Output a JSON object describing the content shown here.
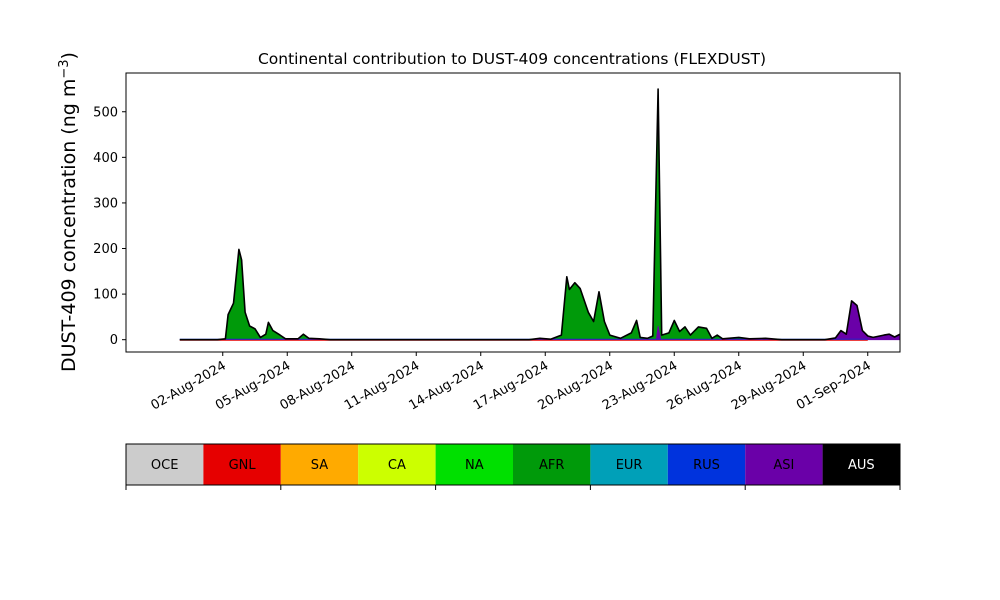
{
  "chart_data": {
    "type": "area",
    "title": "Continental contribution to DUST-409 concentrations (FLEXDUST)",
    "xlabel": "",
    "ylabel_main": "DUST-409 concentration (ng m",
    "ylabel_sup": "−3",
    "ylabel_close": ")",
    "xlim": [
      "2024-07-28T12:00",
      "2024-09-02T12:00"
    ],
    "ylim": [
      -27,
      585
    ],
    "yticks": [
      0,
      100,
      200,
      300,
      400,
      500
    ],
    "xticks": [
      {
        "date": "2024-08-02",
        "label": "02-Aug-2024"
      },
      {
        "date": "2024-08-05",
        "label": "05-Aug-2024"
      },
      {
        "date": "2024-08-08",
        "label": "08-Aug-2024"
      },
      {
        "date": "2024-08-11",
        "label": "11-Aug-2024"
      },
      {
        "date": "2024-08-14",
        "label": "14-Aug-2024"
      },
      {
        "date": "2024-08-17",
        "label": "17-Aug-2024"
      },
      {
        "date": "2024-08-20",
        "label": "20-Aug-2024"
      },
      {
        "date": "2024-08-23",
        "label": "23-Aug-2024"
      },
      {
        "date": "2024-08-26",
        "label": "26-Aug-2024"
      },
      {
        "date": "2024-08-29",
        "label": "29-Aug-2024"
      },
      {
        "date": "2024-09-01",
        "label": "01-Sep-2024"
      }
    ],
    "grid": false,
    "series": [
      {
        "name": "AFR",
        "color": "#009a0a",
        "points": [
          [
            "2024-07-31T00:00",
            0
          ],
          [
            "2024-08-01T18:00",
            0
          ],
          [
            "2024-08-02T03:00",
            2
          ],
          [
            "2024-08-02T06:00",
            55
          ],
          [
            "2024-08-02T12:00",
            80
          ],
          [
            "2024-08-02T18:00",
            198
          ],
          [
            "2024-08-02T21:00",
            175
          ],
          [
            "2024-08-03T01:00",
            60
          ],
          [
            "2024-08-03T06:00",
            30
          ],
          [
            "2024-08-03T12:00",
            24
          ],
          [
            "2024-08-03T18:00",
            5
          ],
          [
            "2024-08-04T00:00",
            12
          ],
          [
            "2024-08-04T03:00",
            38
          ],
          [
            "2024-08-04T08:00",
            20
          ],
          [
            "2024-08-04T16:00",
            10
          ],
          [
            "2024-08-04T22:00",
            2
          ],
          [
            "2024-08-05T12:00",
            2
          ],
          [
            "2024-08-05T18:00",
            12
          ],
          [
            "2024-08-06T00:00",
            3
          ],
          [
            "2024-08-06T12:00",
            2
          ],
          [
            "2024-08-07T00:00",
            0
          ],
          [
            "2024-08-16T06:00",
            0
          ],
          [
            "2024-08-16T18:00",
            3
          ],
          [
            "2024-08-17T06:00",
            1
          ],
          [
            "2024-08-17T18:00",
            10
          ],
          [
            "2024-08-18T00:00",
            138
          ],
          [
            "2024-08-18T03:00",
            110
          ],
          [
            "2024-08-18T09:00",
            125
          ],
          [
            "2024-08-18T15:00",
            112
          ],
          [
            "2024-08-19T00:00",
            60
          ],
          [
            "2024-08-19T06:00",
            40
          ],
          [
            "2024-08-19T12:00",
            105
          ],
          [
            "2024-08-19T18:00",
            40
          ],
          [
            "2024-08-20T00:00",
            10
          ],
          [
            "2024-08-20T12:00",
            3
          ],
          [
            "2024-08-21T00:00",
            15
          ],
          [
            "2024-08-21T06:00",
            42
          ],
          [
            "2024-08-21T10:00",
            5
          ],
          [
            "2024-08-21T18:00",
            3
          ],
          [
            "2024-08-22T00:00",
            8
          ],
          [
            "2024-08-22T06:00",
            520
          ],
          [
            "2024-08-22T10:00",
            10
          ],
          [
            "2024-08-22T18:00",
            15
          ],
          [
            "2024-08-23T00:00",
            42
          ],
          [
            "2024-08-23T06:00",
            18
          ],
          [
            "2024-08-23T12:00",
            28
          ],
          [
            "2024-08-23T18:00",
            10
          ],
          [
            "2024-08-24T03:00",
            28
          ],
          [
            "2024-08-24T12:00",
            25
          ],
          [
            "2024-08-24T18:00",
            3
          ],
          [
            "2024-08-25T00:00",
            10
          ],
          [
            "2024-08-25T06:00",
            2
          ],
          [
            "2024-08-26T00:00",
            5
          ],
          [
            "2024-08-26T12:00",
            2
          ],
          [
            "2024-08-27T06:00",
            3
          ],
          [
            "2024-08-28T00:00",
            0
          ],
          [
            "2024-09-01T00:00",
            0
          ]
        ]
      },
      {
        "name": "ASI",
        "color": "#6a00a8",
        "points": [
          [
            "2024-07-31T00:00",
            0
          ],
          [
            "2024-08-22T04:00",
            0
          ],
          [
            "2024-08-22T06:00",
            30
          ],
          [
            "2024-08-22T09:00",
            0
          ],
          [
            "2024-08-30T00:00",
            0
          ],
          [
            "2024-08-30T12:00",
            4
          ],
          [
            "2024-08-30T18:00",
            20
          ],
          [
            "2024-08-31T00:00",
            12
          ],
          [
            "2024-08-31T06:00",
            85
          ],
          [
            "2024-08-31T12:00",
            75
          ],
          [
            "2024-08-31T18:00",
            20
          ],
          [
            "2024-09-01T00:00",
            8
          ],
          [
            "2024-09-01T06:00",
            5
          ],
          [
            "2024-09-01T18:00",
            10
          ],
          [
            "2024-09-02T00:00",
            12
          ],
          [
            "2024-09-02T06:00",
            6
          ],
          [
            "2024-09-02T12:00",
            12
          ],
          [
            "2024-09-02T18:00",
            5
          ],
          [
            "2024-09-03T00:00",
            3
          ]
        ]
      }
    ],
    "total_line": {
      "color": "#000000",
      "points": [
        [
          "2024-07-31T00:00",
          0
        ],
        [
          "2024-08-01T18:00",
          0
        ],
        [
          "2024-08-02T03:00",
          2
        ],
        [
          "2024-08-02T06:00",
          55
        ],
        [
          "2024-08-02T12:00",
          80
        ],
        [
          "2024-08-02T18:00",
          198
        ],
        [
          "2024-08-02T21:00",
          175
        ],
        [
          "2024-08-03T01:00",
          60
        ],
        [
          "2024-08-03T06:00",
          30
        ],
        [
          "2024-08-03T12:00",
          24
        ],
        [
          "2024-08-03T18:00",
          5
        ],
        [
          "2024-08-04T00:00",
          12
        ],
        [
          "2024-08-04T03:00",
          38
        ],
        [
          "2024-08-04T08:00",
          20
        ],
        [
          "2024-08-04T16:00",
          10
        ],
        [
          "2024-08-04T22:00",
          2
        ],
        [
          "2024-08-05T12:00",
          2
        ],
        [
          "2024-08-05T18:00",
          12
        ],
        [
          "2024-08-06T00:00",
          3
        ],
        [
          "2024-08-06T12:00",
          2
        ],
        [
          "2024-08-07T00:00",
          0
        ],
        [
          "2024-08-16T06:00",
          0
        ],
        [
          "2024-08-16T18:00",
          3
        ],
        [
          "2024-08-17T06:00",
          1
        ],
        [
          "2024-08-17T18:00",
          10
        ],
        [
          "2024-08-18T00:00",
          138
        ],
        [
          "2024-08-18T03:00",
          110
        ],
        [
          "2024-08-18T09:00",
          125
        ],
        [
          "2024-08-18T15:00",
          112
        ],
        [
          "2024-08-19T00:00",
          60
        ],
        [
          "2024-08-19T06:00",
          40
        ],
        [
          "2024-08-19T12:00",
          105
        ],
        [
          "2024-08-19T18:00",
          40
        ],
        [
          "2024-08-20T00:00",
          10
        ],
        [
          "2024-08-20T12:00",
          3
        ],
        [
          "2024-08-21T00:00",
          15
        ],
        [
          "2024-08-21T06:00",
          42
        ],
        [
          "2024-08-21T10:00",
          5
        ],
        [
          "2024-08-21T18:00",
          3
        ],
        [
          "2024-08-22T00:00",
          8
        ],
        [
          "2024-08-22T06:00",
          550
        ],
        [
          "2024-08-22T10:00",
          10
        ],
        [
          "2024-08-22T18:00",
          15
        ],
        [
          "2024-08-23T00:00",
          42
        ],
        [
          "2024-08-23T06:00",
          18
        ],
        [
          "2024-08-23T12:00",
          28
        ],
        [
          "2024-08-23T18:00",
          10
        ],
        [
          "2024-08-24T03:00",
          28
        ],
        [
          "2024-08-24T12:00",
          25
        ],
        [
          "2024-08-24T18:00",
          3
        ],
        [
          "2024-08-25T00:00",
          10
        ],
        [
          "2024-08-25T06:00",
          2
        ],
        [
          "2024-08-26T00:00",
          5
        ],
        [
          "2024-08-26T12:00",
          2
        ],
        [
          "2024-08-27T06:00",
          3
        ],
        [
          "2024-08-28T00:00",
          0
        ],
        [
          "2024-08-30T00:00",
          0
        ],
        [
          "2024-08-30T12:00",
          4
        ],
        [
          "2024-08-30T18:00",
          20
        ],
        [
          "2024-08-31T00:00",
          12
        ],
        [
          "2024-08-31T06:00",
          85
        ],
        [
          "2024-08-31T12:00",
          75
        ],
        [
          "2024-08-31T18:00",
          20
        ],
        [
          "2024-09-01T00:00",
          8
        ],
        [
          "2024-09-01T06:00",
          5
        ],
        [
          "2024-09-01T18:00",
          10
        ],
        [
          "2024-09-02T00:00",
          12
        ],
        [
          "2024-09-02T06:00",
          6
        ],
        [
          "2024-09-02T12:00",
          12
        ],
        [
          "2024-09-02T18:00",
          5
        ],
        [
          "2024-09-03T00:00",
          3
        ]
      ]
    },
    "legend": {
      "placement": "bottom",
      "items": [
        {
          "label": "OCE",
          "color": "#cccccc"
        },
        {
          "label": "GNL",
          "color": "#e60000"
        },
        {
          "label": "SA",
          "color": "#ffaa00"
        },
        {
          "label": "CA",
          "color": "#ccff00"
        },
        {
          "label": "NA",
          "color": "#00e000"
        },
        {
          "label": "AFR",
          "color": "#009a0a"
        },
        {
          "label": "EUR",
          "color": "#00a0b8"
        },
        {
          "label": "RUS",
          "color": "#0033dd"
        },
        {
          "label": "ASI",
          "color": "#6a00a8"
        },
        {
          "label": "AUS",
          "color": "#000000"
        }
      ]
    }
  }
}
